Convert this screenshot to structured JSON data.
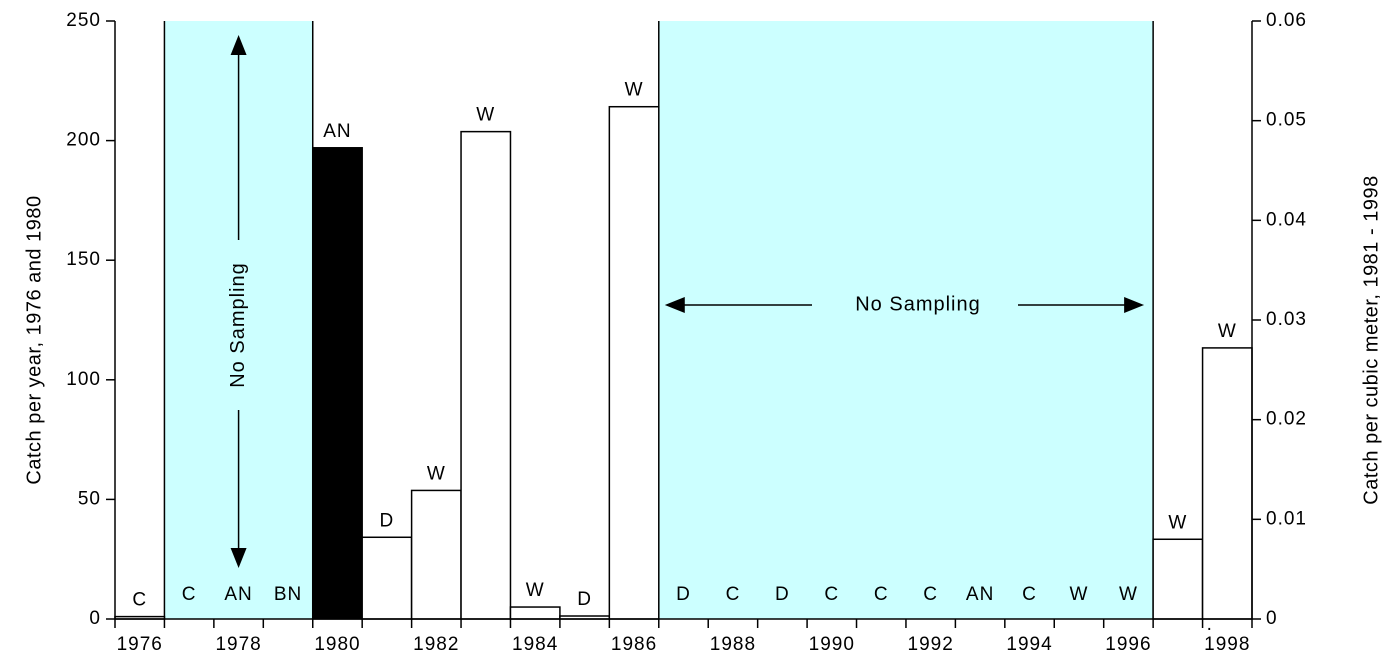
{
  "chart_data": {
    "type": "bar",
    "x_ticks": [
      "1976",
      "1978",
      "1980",
      "1982",
      "1984",
      "1986",
      "1988",
      "1990",
      "1992",
      "1994",
      "1996",
      "1998"
    ],
    "left_axis": {
      "label": "Catch per year, 1976 and 1980",
      "range": [
        0,
        250
      ],
      "ticks": [
        "0",
        "50",
        "100",
        "150",
        "200",
        "250"
      ]
    },
    "right_axis": {
      "label": "Catch per cubic meter, 1981 - 1998",
      "range": [
        0,
        0.06
      ],
      "ticks": [
        "0",
        "0.01",
        "0.02",
        "0.03",
        "0.04",
        "0.05",
        "0.06"
      ]
    },
    "grid": false,
    "no_sampling_label": "No Sampling",
    "no_sampling_color": "#ccffff",
    "no_sampling_periods": [
      {
        "from": 1977,
        "to": 1979,
        "orientation": "vertical"
      },
      {
        "from": 1987,
        "to": 1996,
        "orientation": "horizontal"
      }
    ],
    "bars": [
      {
        "year": 1976,
        "axis": "left",
        "value": 1,
        "code": "C",
        "fill": "#ffffff"
      },
      {
        "year": 1980,
        "axis": "left",
        "value": 197,
        "code": "AN",
        "fill": "#000000"
      },
      {
        "year": 1981,
        "axis": "right",
        "value": 0.0082,
        "code": "D",
        "fill": "#ffffff"
      },
      {
        "year": 1982,
        "axis": "right",
        "value": 0.0129,
        "code": "W",
        "fill": "#ffffff"
      },
      {
        "year": 1983,
        "axis": "right",
        "value": 0.0489,
        "code": "W",
        "fill": "#ffffff"
      },
      {
        "year": 1984,
        "axis": "right",
        "value": 0.0012,
        "code": "W",
        "fill": "#ffffff"
      },
      {
        "year": 1985,
        "axis": "right",
        "value": 0.0003,
        "code": "D",
        "fill": "#ffffff"
      },
      {
        "year": 1986,
        "axis": "right",
        "value": 0.0514,
        "code": "W",
        "fill": "#ffffff"
      },
      {
        "year": 1997,
        "axis": "right",
        "value": 0.008,
        "code": "W",
        "fill": "#ffffff"
      },
      {
        "year": 1998,
        "axis": "right",
        "value": 0.0272,
        "code": "W",
        "fill": "#ffffff"
      }
    ],
    "year_codes_no_data": [
      {
        "year": 1977,
        "code": "C"
      },
      {
        "year": 1978,
        "code": "AN"
      },
      {
        "year": 1979,
        "code": "BN"
      },
      {
        "year": 1987,
        "code": "D"
      },
      {
        "year": 1988,
        "code": "C"
      },
      {
        "year": 1989,
        "code": "D"
      },
      {
        "year": 1990,
        "code": "C"
      },
      {
        "year": 1991,
        "code": "C"
      },
      {
        "year": 1992,
        "code": "C"
      },
      {
        "year": 1993,
        "code": "AN"
      },
      {
        "year": 1994,
        "code": "C"
      },
      {
        "year": 1995,
        "code": "W"
      },
      {
        "year": 1996,
        "code": "W"
      }
    ],
    "footnote_mark": "."
  }
}
